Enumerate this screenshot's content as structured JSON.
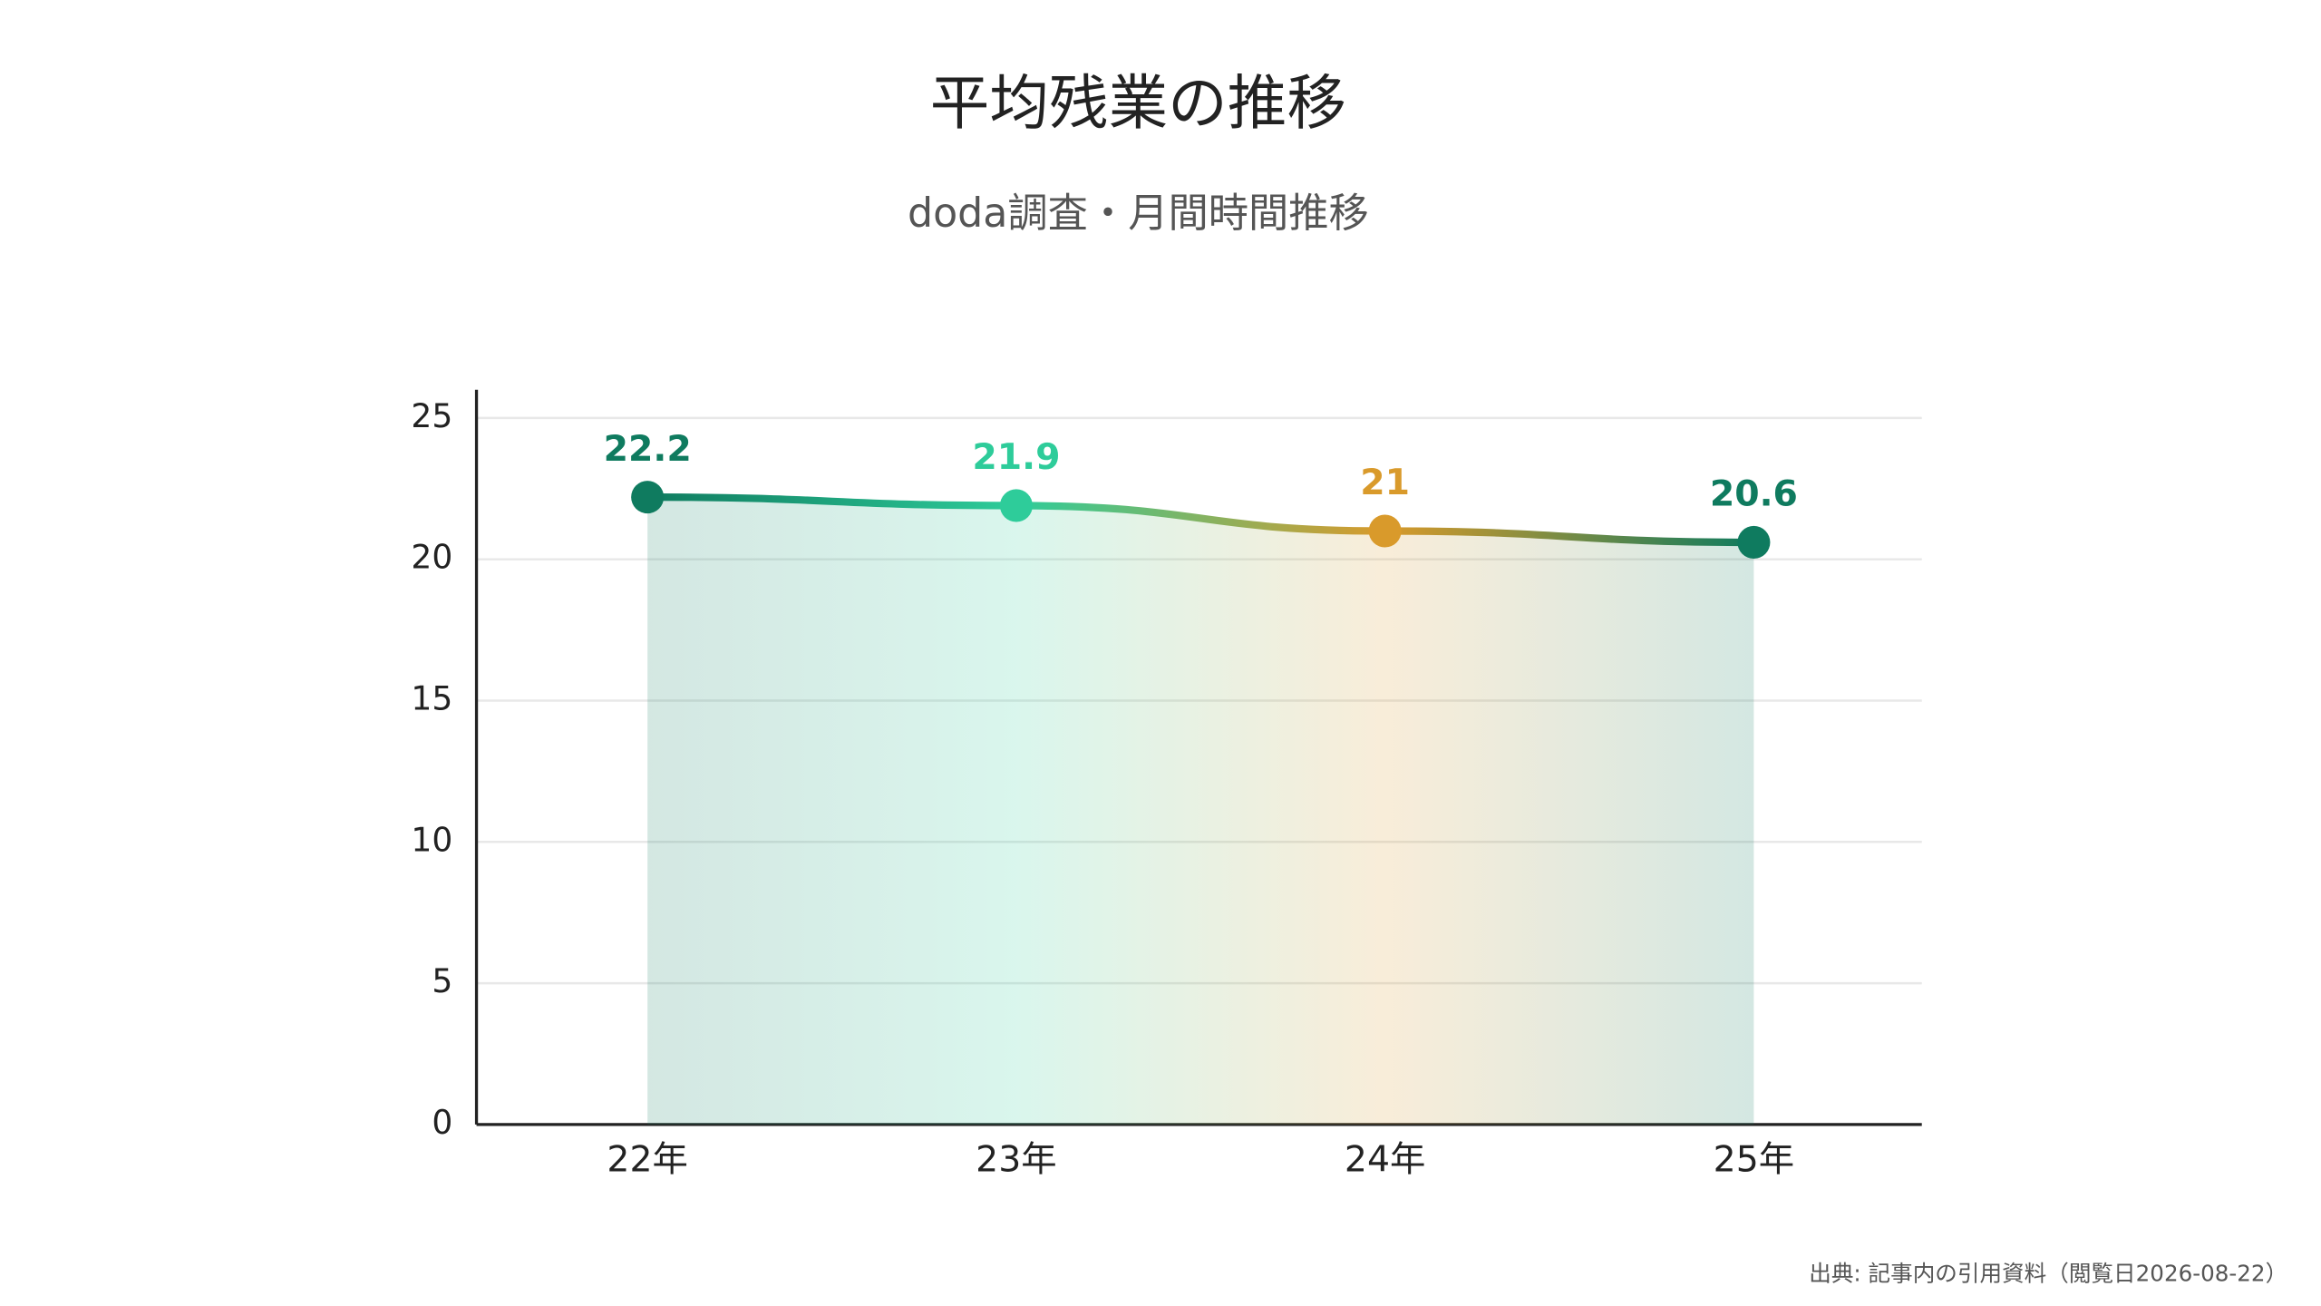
{
  "chart_data": {
    "type": "line",
    "title": "平均残業の推移",
    "subtitle": "doda調査・月間時間推移",
    "categories": [
      "22年",
      "23年",
      "24年",
      "25年"
    ],
    "values": [
      22.2,
      21.9,
      21,
      20.6
    ],
    "colors": [
      "#0f7b5f",
      "#2ecc9a",
      "#d99a2b",
      "#0f7b5f"
    ],
    "ylim": [
      0,
      26
    ],
    "yticks": [
      0,
      5,
      10,
      15,
      20,
      25
    ],
    "grid": true,
    "source": "出典: 記事内の引用資料（閲覧日2026-08-22）"
  }
}
